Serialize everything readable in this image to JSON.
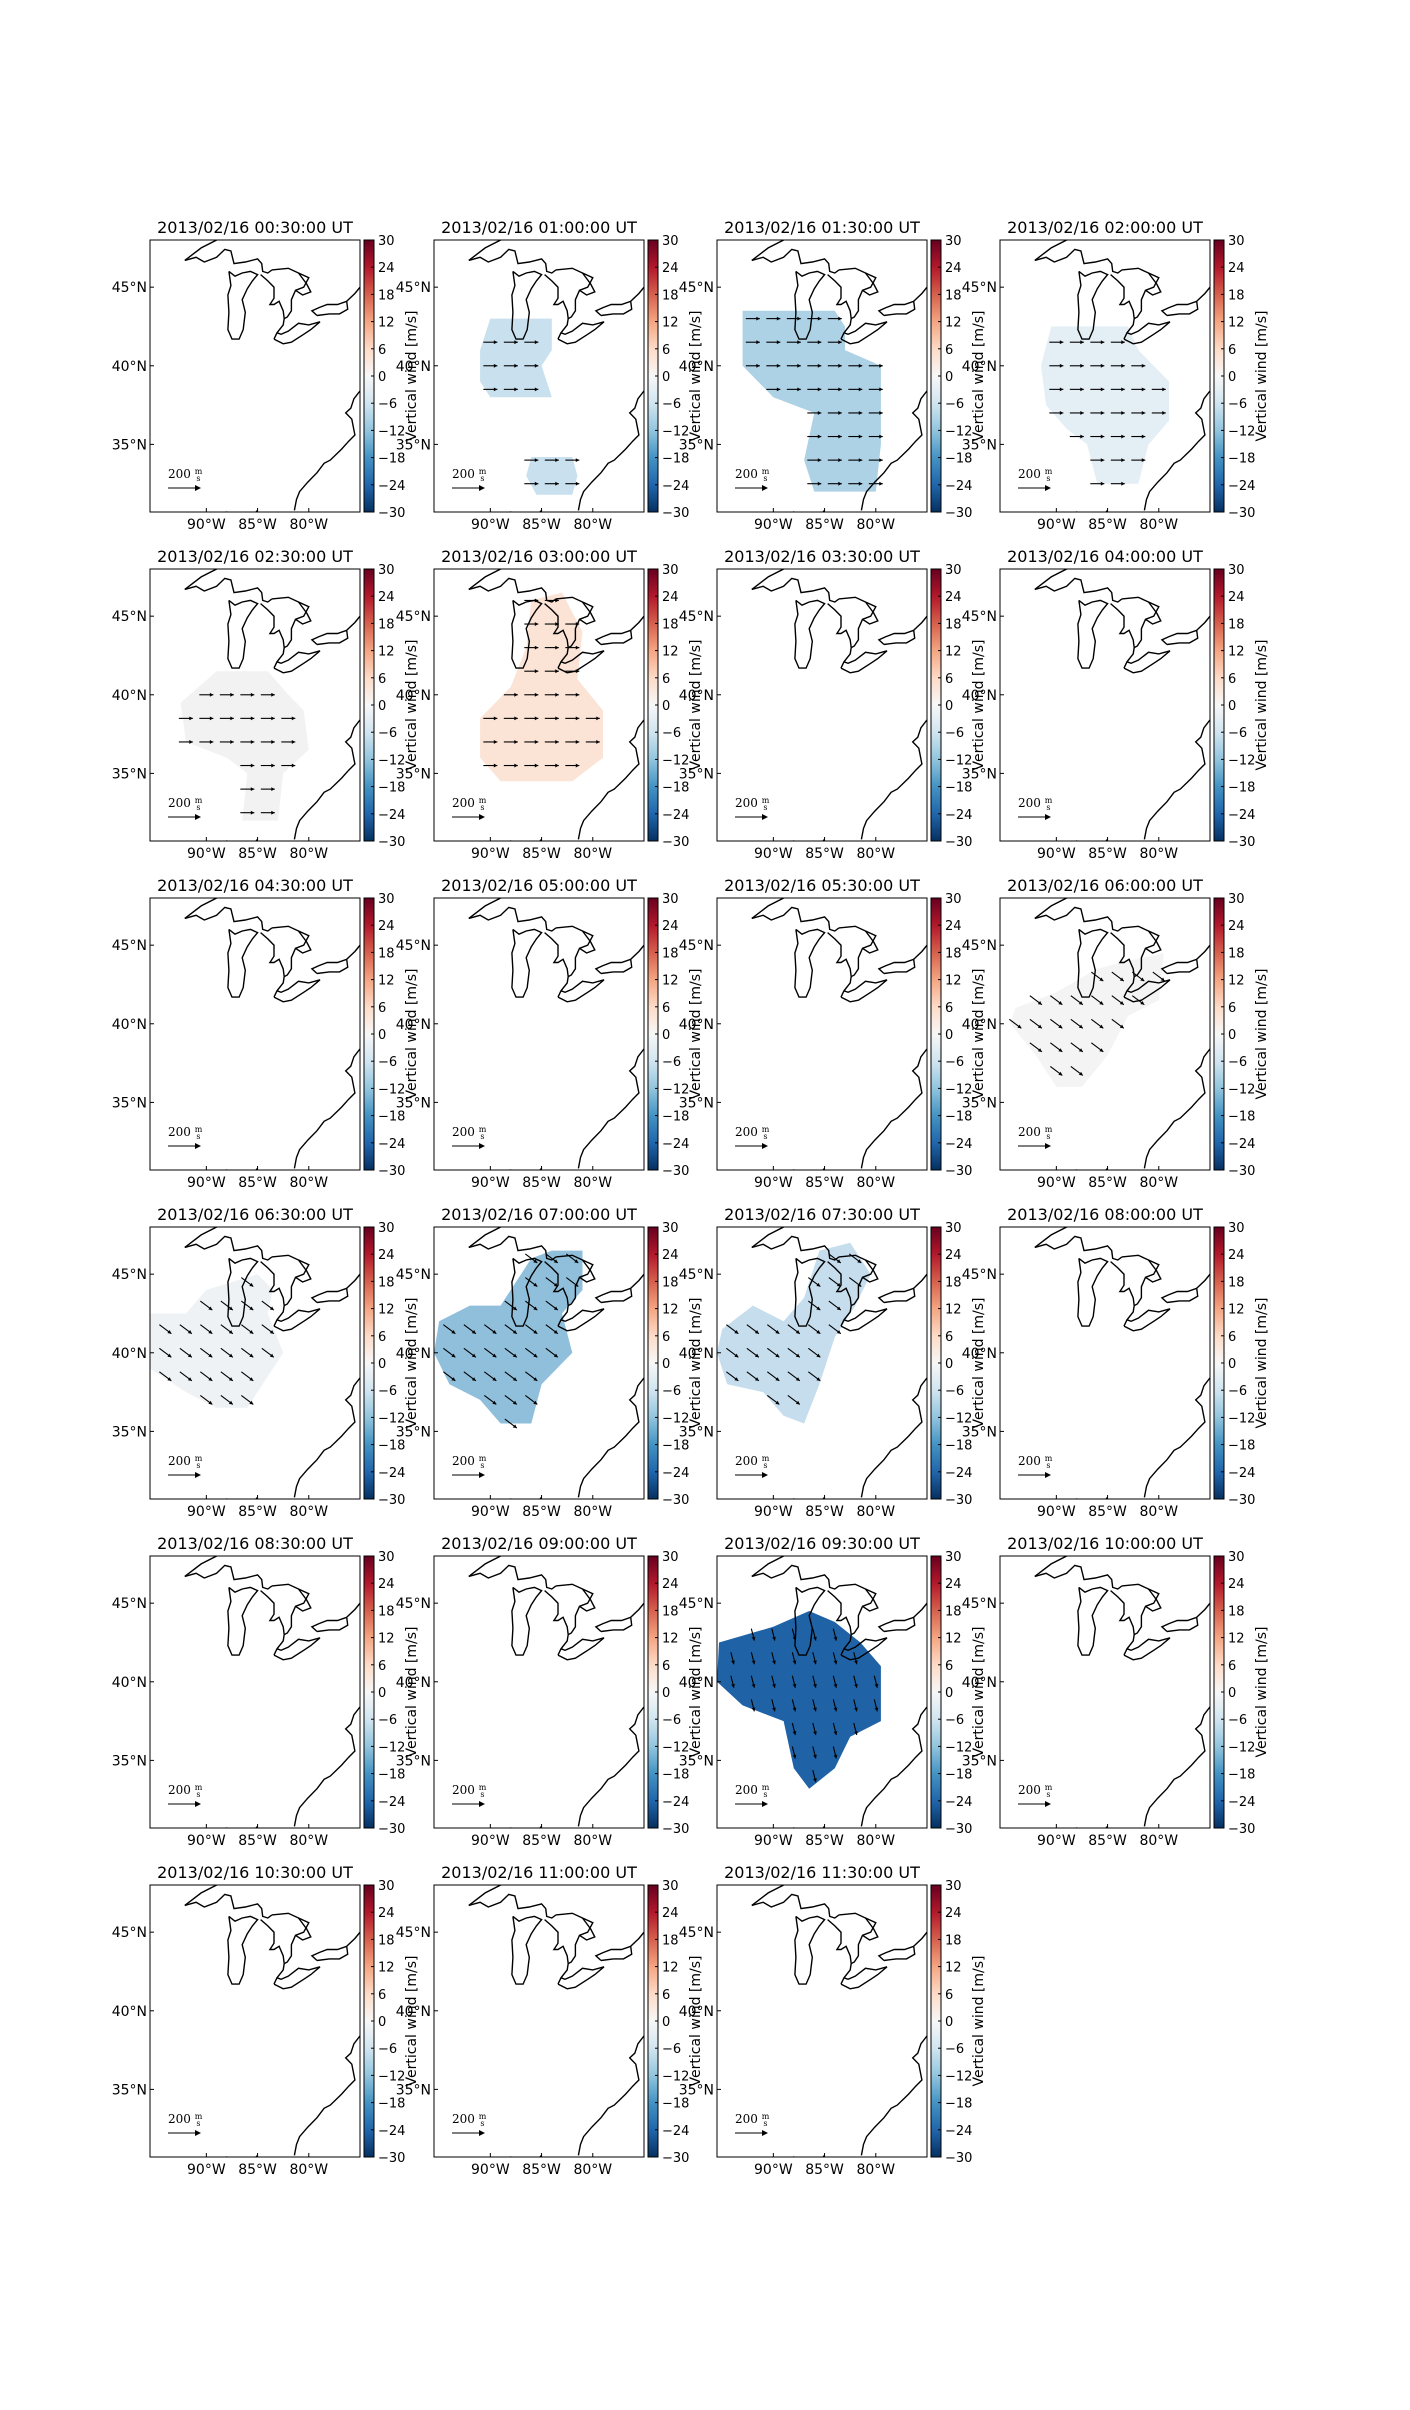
{
  "figure": {
    "panels": [
      {
        "title": "2013/02/16 00:30:00 UT",
        "fill": "none",
        "vectors": "none"
      },
      {
        "title": "2013/02/16 01:00:00 UT",
        "fill": "#c9e0ee",
        "vectors": "east"
      },
      {
        "title": "2013/02/16 01:30:00 UT",
        "fill": "#add1e5",
        "vectors": "east"
      },
      {
        "title": "2013/02/16 02:00:00 UT",
        "fill": "#e3eef5",
        "vectors": "east"
      },
      {
        "title": "2013/02/16 02:30:00 UT",
        "fill": "#f2f2f2",
        "vectors": "east"
      },
      {
        "title": "2013/02/16 03:00:00 UT",
        "fill": "#fbe3d6",
        "vectors": "east"
      },
      {
        "title": "2013/02/16 03:30:00 UT",
        "fill": "none",
        "vectors": "none"
      },
      {
        "title": "2013/02/16 04:00:00 UT",
        "fill": "none",
        "vectors": "none"
      },
      {
        "title": "2013/02/16 04:30:00 UT",
        "fill": "none",
        "vectors": "none"
      },
      {
        "title": "2013/02/16 05:00:00 UT",
        "fill": "none",
        "vectors": "none"
      },
      {
        "title": "2013/02/16 05:30:00 UT",
        "fill": "none",
        "vectors": "none"
      },
      {
        "title": "2013/02/16 06:00:00 UT",
        "fill": "#f4f4f4",
        "vectors": "southeast"
      },
      {
        "title": "2013/02/16 06:30:00 UT",
        "fill": "#eef2f5",
        "vectors": "southeast"
      },
      {
        "title": "2013/02/16 07:00:00 UT",
        "fill": "#8fbfdb",
        "vectors": "southeast"
      },
      {
        "title": "2013/02/16 07:30:00 UT",
        "fill": "#c6dded",
        "vectors": "southeast"
      },
      {
        "title": "2013/02/16 08:00:00 UT",
        "fill": "none",
        "vectors": "none"
      },
      {
        "title": "2013/02/16 08:30:00 UT",
        "fill": "none",
        "vectors": "none"
      },
      {
        "title": "2013/02/16 09:00:00 UT",
        "fill": "none",
        "vectors": "none"
      },
      {
        "title": "2013/02/16 09:30:00 UT",
        "fill": "#1f62a6",
        "vectors": "south"
      },
      {
        "title": "2013/02/16 10:00:00 UT",
        "fill": "none",
        "vectors": "none"
      },
      {
        "title": "2013/02/16 10:30:00 UT",
        "fill": "none",
        "vectors": "none"
      },
      {
        "title": "2013/02/16 11:00:00 UT",
        "fill": "none",
        "vectors": "none"
      },
      {
        "title": "2013/02/16 11:30:00 UT",
        "fill": "none",
        "vectors": "none"
      }
    ],
    "lat_ticks": [
      "45°N",
      "40°N",
      "35°N"
    ],
    "lon_ticks": [
      "90°W",
      "85°W",
      "80°W"
    ],
    "colorbar": {
      "label": "Vertical wind [m/s]",
      "ticks": [
        "30",
        "24",
        "18",
        "12",
        "6",
        "0",
        "−6",
        "−12",
        "−18",
        "−24",
        "−30"
      ],
      "range": [
        -30,
        30
      ],
      "colormap": "RdBu_r"
    },
    "scale_label": "200",
    "scale_unit_num": "m",
    "scale_unit_den": "s"
  }
}
